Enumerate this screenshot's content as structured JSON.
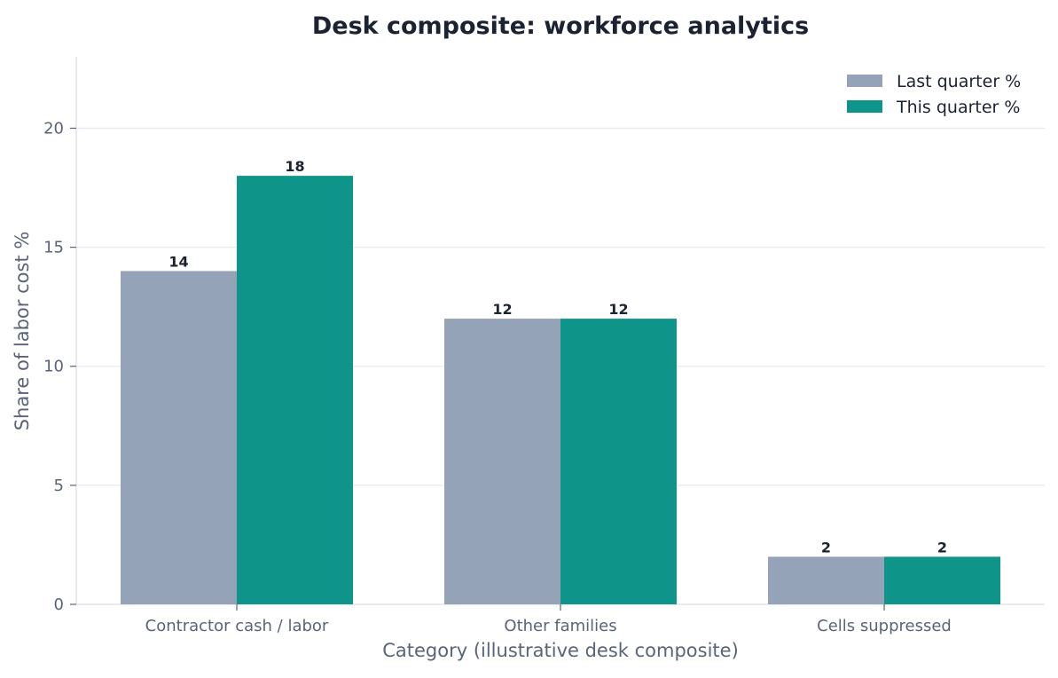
{
  "chart_data": {
    "type": "bar",
    "title": "Desk composite: workforce analytics",
    "xlabel": "Category (illustrative desk composite)",
    "ylabel": "Share of labor cost %",
    "categories": [
      "Contractor cash / labor",
      "Other families",
      "Cells suppressed"
    ],
    "series": [
      {
        "name": "Last quarter %",
        "values": [
          14,
          12,
          2
        ],
        "color": "#95a3b8"
      },
      {
        "name": "This quarter %",
        "values": [
          18,
          12,
          2
        ],
        "color": "#0e9488"
      }
    ],
    "ylim": [
      0,
      23
    ],
    "yticks": [
      0,
      5,
      10,
      15,
      20
    ],
    "grid": true,
    "legend_position": "top-right",
    "colors": {
      "grid": "#e6e9ee",
      "axis": "#d9dde3",
      "tick_text": "#5a6478",
      "title_text": "#1b2232"
    }
  }
}
